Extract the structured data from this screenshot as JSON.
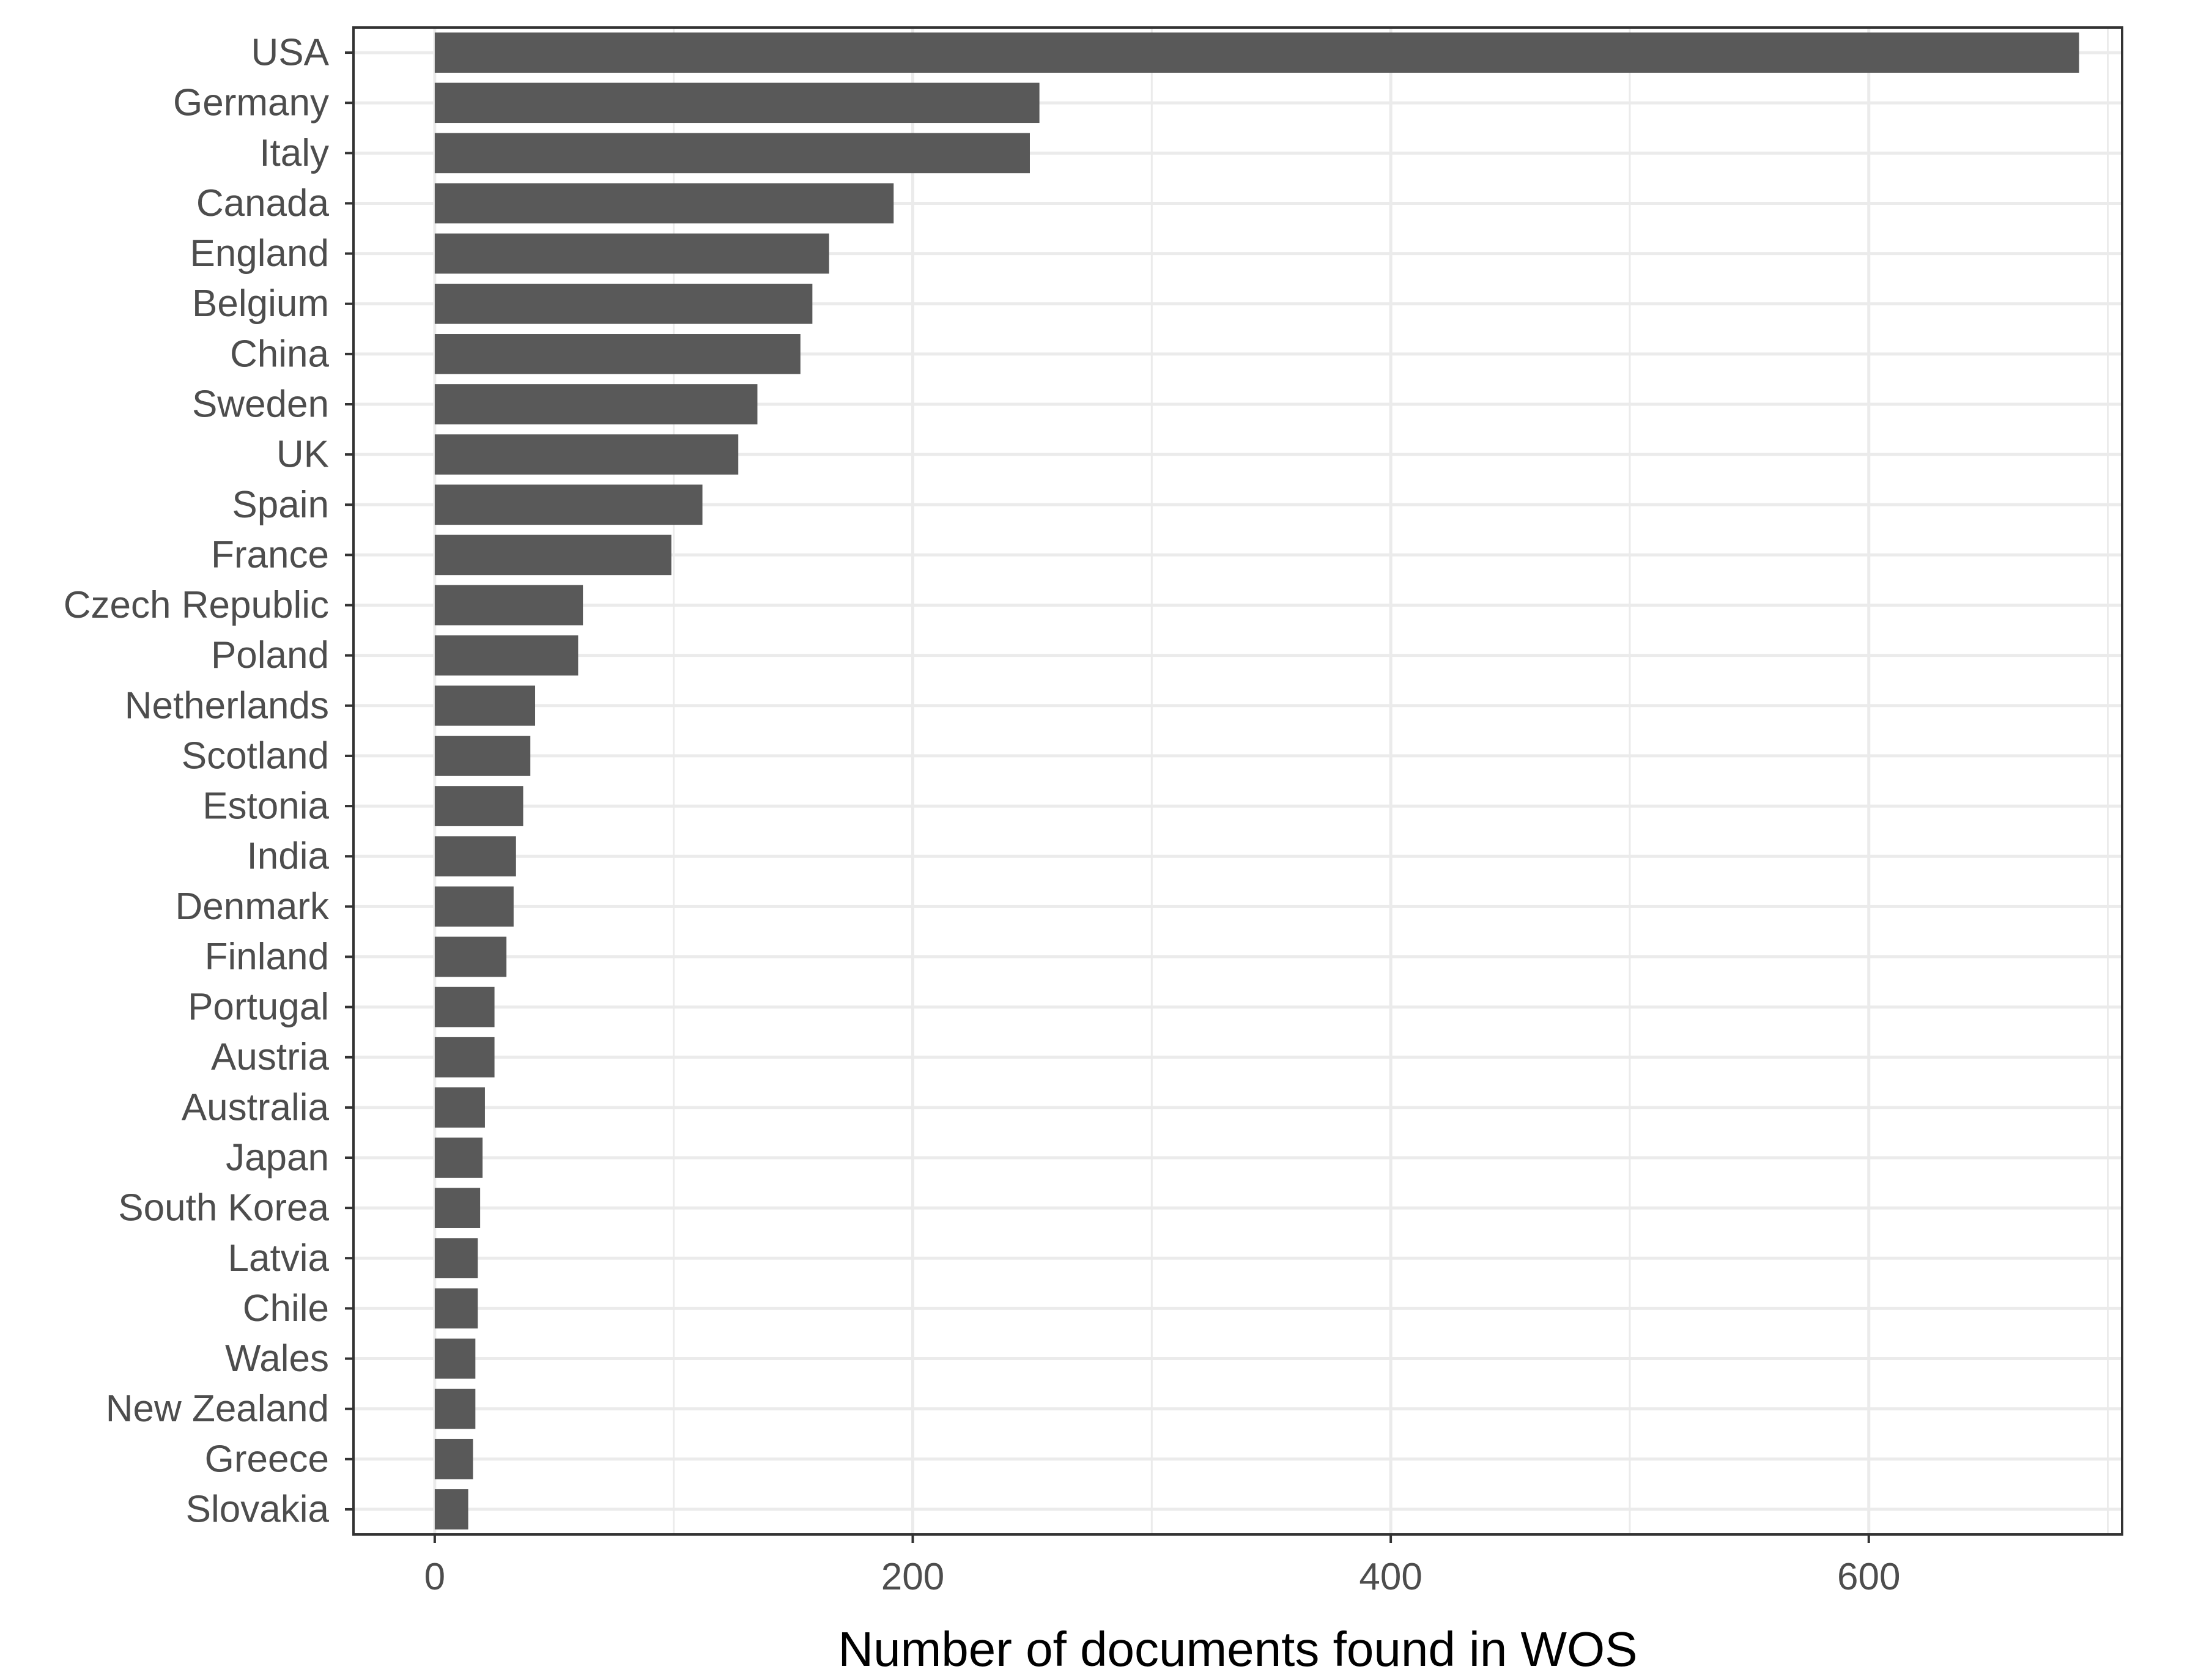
{
  "chart_data": {
    "type": "bar",
    "orientation": "horizontal",
    "categories": [
      "USA",
      "Germany",
      "Italy",
      "Canada",
      "England",
      "Belgium",
      "China",
      "Sweden",
      "UK",
      "Spain",
      "France",
      "Czech Republic",
      "Poland",
      "Netherlands",
      "Scotland",
      "Estonia",
      "India",
      "Denmark",
      "Finland",
      "Portugal",
      "Austria",
      "Australia",
      "Japan",
      "South Korea",
      "Latvia",
      "Chile",
      "Wales",
      "New Zealand",
      "Greece",
      "Slovakia"
    ],
    "values": [
      688,
      253,
      249,
      192,
      165,
      158,
      153,
      135,
      127,
      112,
      99,
      62,
      60,
      42,
      40,
      37,
      34,
      33,
      30,
      25,
      25,
      21,
      20,
      19,
      18,
      18,
      17,
      17,
      16,
      14
    ],
    "title": "",
    "xlabel": "Number of documents found in WOS",
    "ylabel": "",
    "xlim": [
      -34,
      706
    ],
    "xticks": [
      0,
      200,
      400,
      600
    ],
    "grid": true,
    "bar_color": "#595959",
    "grid_color": "#ebebeb",
    "axis_color": "#333333"
  }
}
